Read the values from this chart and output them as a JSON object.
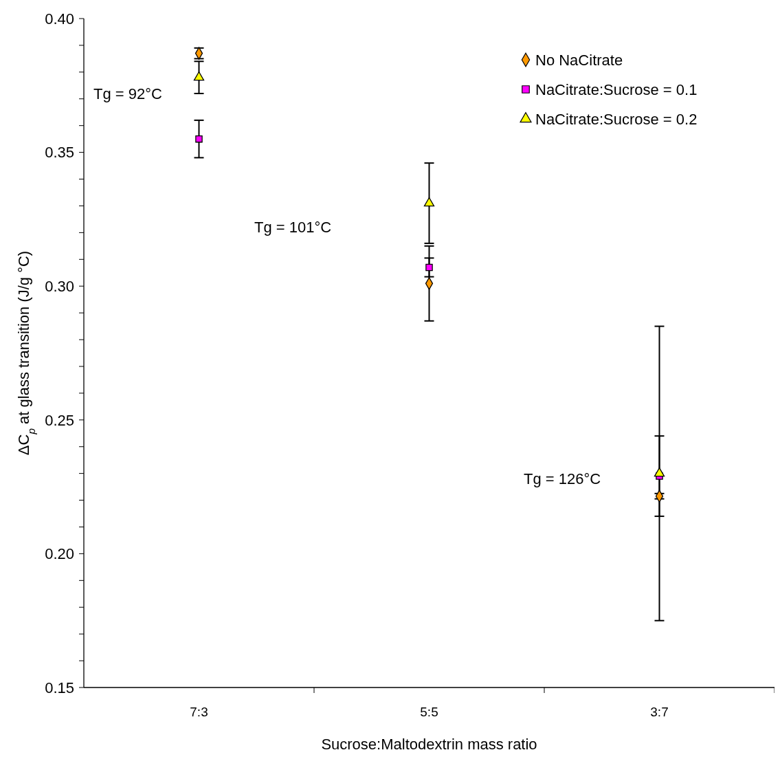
{
  "chart_data": {
    "type": "scatter",
    "xlabel": "Sucrose:Maltodextrin mass ratio",
    "ylabel": "ΔC$_{p}$ at glass transition (J/g °C)",
    "categories": [
      "7:3",
      "5:5",
      "3:7"
    ],
    "series": [
      {
        "name": "No NaCitrate",
        "color": "#ff9900",
        "marker": "diamond",
        "values": [
          0.387,
          0.301,
          0.2215
        ],
        "errors": [
          0.002,
          0.014,
          0.001
        ]
      },
      {
        "name": "NaCitrate:Sucrose = 0.1",
        "color": "#ff00ff",
        "marker": "square",
        "values": [
          0.355,
          0.307,
          0.229
        ],
        "errors": [
          0.007,
          0.0035,
          0.015
        ]
      },
      {
        "name": "NaCitrate:Sucrose = 0.2",
        "color": "#ffff00",
        "marker": "triangle",
        "values": [
          0.378,
          0.331,
          0.23
        ],
        "errors": [
          0.006,
          0.015,
          0.055
        ]
      }
    ],
    "ylim": [
      0.15,
      0.4
    ],
    "yticks": [
      {
        "value": 0.15,
        "label": "0.15"
      },
      {
        "value": 0.16,
        "label": null
      },
      {
        "value": 0.17,
        "label": null
      },
      {
        "value": 0.18,
        "label": null
      },
      {
        "value": 0.19,
        "label": null
      },
      {
        "value": 0.2,
        "label": "0.20"
      },
      {
        "value": 0.21,
        "label": null
      },
      {
        "value": 0.22,
        "label": null
      },
      {
        "value": 0.23,
        "label": null
      },
      {
        "value": 0.24,
        "label": null
      },
      {
        "value": 0.25,
        "label": "0.25"
      },
      {
        "value": 0.26,
        "label": null
      },
      {
        "value": 0.27,
        "label": null
      },
      {
        "value": 0.28,
        "label": null
      },
      {
        "value": 0.29,
        "label": null
      },
      {
        "value": 0.3,
        "label": "0.30"
      },
      {
        "value": 0.31,
        "label": null
      },
      {
        "value": 0.32,
        "label": null
      },
      {
        "value": 0.33,
        "label": null
      },
      {
        "value": 0.34,
        "label": null
      },
      {
        "value": 0.35,
        "label": "0.35"
      },
      {
        "value": 0.36,
        "label": null
      },
      {
        "value": 0.37,
        "label": null
      },
      {
        "value": 0.38,
        "label": null
      },
      {
        "value": 0.39,
        "label": null
      },
      {
        "value": 0.4,
        "label": "0.40"
      }
    ],
    "annotations": [
      "Tg = 92°C",
      "Tg = 101°C",
      "Tg = 126°C"
    ],
    "legend": "top right",
    "grid": false
  }
}
